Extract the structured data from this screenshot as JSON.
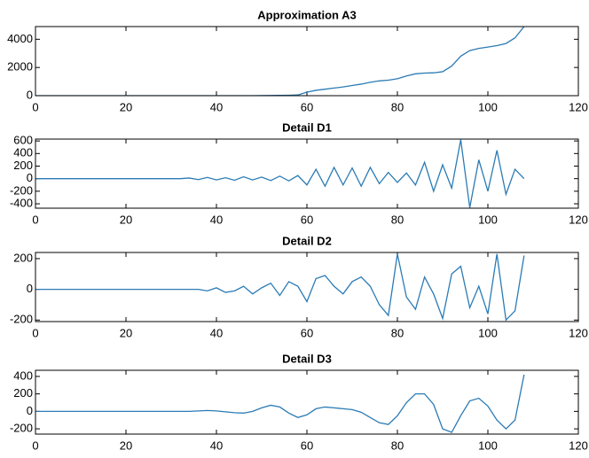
{
  "chart_data": [
    {
      "type": "line",
      "title": "Approximation A3",
      "x": [
        0,
        2,
        4,
        6,
        8,
        10,
        12,
        14,
        16,
        18,
        20,
        22,
        24,
        26,
        28,
        30,
        32,
        34,
        36,
        38,
        40,
        42,
        44,
        46,
        48,
        50,
        52,
        54,
        56,
        58,
        60,
        62,
        64,
        66,
        68,
        70,
        72,
        74,
        76,
        78,
        80,
        82,
        84,
        86,
        88,
        90,
        92,
        94,
        96,
        98,
        100,
        102,
        104,
        106,
        108
      ],
      "series": [
        {
          "color": "#2b7bb5",
          "values": [
            0,
            0,
            0,
            0,
            0,
            0,
            0,
            0,
            0,
            0,
            0,
            0,
            0,
            0,
            0,
            0,
            0,
            0,
            0,
            0,
            0,
            0,
            0,
            0,
            0,
            10,
            15,
            20,
            30,
            50,
            250,
            380,
            460,
            540,
            620,
            720,
            820,
            950,
            1050,
            1100,
            1200,
            1400,
            1550,
            1600,
            1620,
            1700,
            2100,
            2800,
            3200,
            3350,
            3450,
            3550,
            3700,
            4100,
            4900
          ]
        }
      ],
      "xlim": [
        0,
        120
      ],
      "xticks": [
        0,
        20,
        40,
        60,
        80,
        100,
        120
      ],
      "ylim": [
        0,
        4900
      ],
      "yticks": [
        0,
        2000,
        4000
      ]
    },
    {
      "type": "line",
      "title": "Detail D1",
      "x": [
        0,
        2,
        4,
        6,
        8,
        10,
        12,
        14,
        16,
        18,
        20,
        22,
        24,
        26,
        28,
        30,
        32,
        34,
        36,
        38,
        40,
        42,
        44,
        46,
        48,
        50,
        52,
        54,
        56,
        58,
        60,
        62,
        64,
        66,
        68,
        70,
        72,
        74,
        76,
        78,
        80,
        82,
        84,
        86,
        88,
        90,
        92,
        94,
        96,
        98,
        100,
        102,
        104,
        106,
        108
      ],
      "series": [
        {
          "color": "#2b7bb5",
          "values": [
            0,
            0,
            0,
            0,
            0,
            0,
            0,
            0,
            0,
            0,
            0,
            0,
            0,
            0,
            0,
            0,
            0,
            10,
            -15,
            20,
            -20,
            15,
            -25,
            30,
            -20,
            25,
            -30,
            40,
            -35,
            50,
            -100,
            150,
            -120,
            180,
            -100,
            170,
            -120,
            180,
            -80,
            100,
            -60,
            90,
            -100,
            260,
            -200,
            220,
            -150,
            620,
            -460,
            300,
            -200,
            450,
            -250,
            150,
            0
          ]
        }
      ],
      "xlim": [
        0,
        120
      ],
      "xticks": [
        0,
        20,
        40,
        60,
        80,
        100,
        120
      ],
      "ylim": [
        -470,
        630
      ],
      "yticks": [
        -400,
        -200,
        0,
        200,
        400,
        600
      ]
    },
    {
      "type": "line",
      "title": "Detail D2",
      "x": [
        0,
        2,
        4,
        6,
        8,
        10,
        12,
        14,
        16,
        18,
        20,
        22,
        24,
        26,
        28,
        30,
        32,
        34,
        36,
        38,
        40,
        42,
        44,
        46,
        48,
        50,
        52,
        54,
        56,
        58,
        60,
        62,
        64,
        66,
        68,
        70,
        72,
        74,
        76,
        78,
        80,
        82,
        84,
        86,
        88,
        90,
        92,
        94,
        96,
        98,
        100,
        102,
        104,
        106,
        108
      ],
      "series": [
        {
          "color": "#2b7bb5",
          "values": [
            0,
            0,
            0,
            0,
            0,
            0,
            0,
            0,
            0,
            0,
            0,
            0,
            0,
            0,
            0,
            0,
            0,
            0,
            0,
            -10,
            10,
            -20,
            -10,
            20,
            -30,
            10,
            40,
            -40,
            50,
            20,
            -80,
            70,
            90,
            20,
            -30,
            50,
            80,
            20,
            -100,
            -170,
            230,
            -50,
            -130,
            80,
            -30,
            -190,
            100,
            150,
            -120,
            20,
            -160,
            230,
            -200,
            -140,
            220
          ]
        }
      ],
      "xlim": [
        0,
        120
      ],
      "xticks": [
        0,
        20,
        40,
        60,
        80,
        100,
        120
      ],
      "ylim": [
        -210,
        240
      ],
      "yticks": [
        -200,
        0,
        200
      ]
    },
    {
      "type": "line",
      "title": "Detail D3",
      "x": [
        0,
        2,
        4,
        6,
        8,
        10,
        12,
        14,
        16,
        18,
        20,
        22,
        24,
        26,
        28,
        30,
        32,
        34,
        36,
        38,
        40,
        42,
        44,
        46,
        48,
        50,
        52,
        54,
        56,
        58,
        60,
        62,
        64,
        66,
        68,
        70,
        72,
        74,
        76,
        78,
        80,
        82,
        84,
        86,
        88,
        90,
        92,
        94,
        96,
        98,
        100,
        102,
        104,
        106,
        108
      ],
      "series": [
        {
          "color": "#2b7bb5",
          "values": [
            0,
            0,
            0,
            0,
            0,
            0,
            0,
            0,
            0,
            0,
            0,
            0,
            0,
            0,
            0,
            0,
            0,
            0,
            5,
            10,
            5,
            -5,
            -15,
            -20,
            0,
            40,
            70,
            50,
            -20,
            -70,
            -40,
            30,
            50,
            40,
            30,
            20,
            -10,
            -70,
            -130,
            -150,
            -50,
            100,
            200,
            200,
            80,
            -200,
            -240,
            -50,
            120,
            150,
            60,
            -100,
            -200,
            -100,
            420
          ]
        }
      ],
      "xlim": [
        0,
        120
      ],
      "xticks": [
        0,
        20,
        40,
        60,
        80,
        100,
        120
      ],
      "ylim": [
        -260,
        470
      ],
      "yticks": [
        -200,
        0,
        200,
        400
      ]
    }
  ]
}
